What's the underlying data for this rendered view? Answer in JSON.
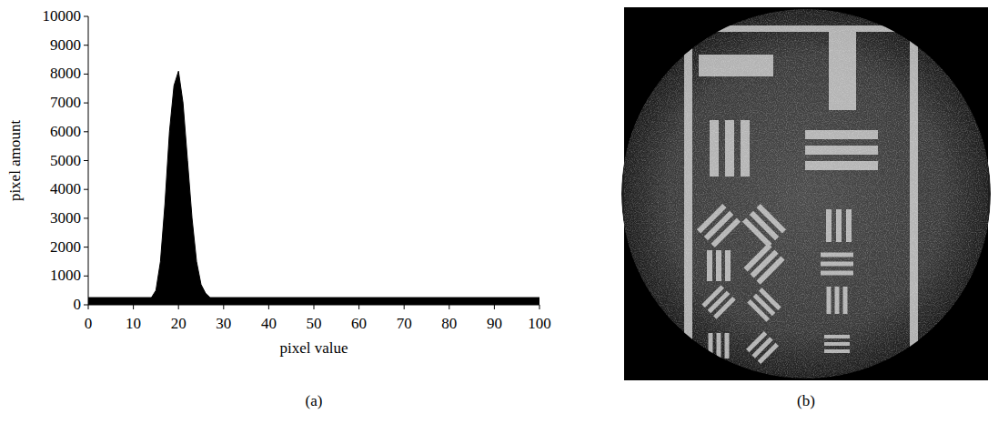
{
  "chart_data": {
    "type": "area",
    "panel_label": "(a)",
    "x_label": "pixel value",
    "y_label": "pixel amount",
    "x": [
      0,
      14,
      15,
      16,
      17,
      18,
      19,
      20,
      21,
      22,
      23,
      24,
      25,
      26,
      27,
      100
    ],
    "values": [
      250,
      250,
      500,
      1500,
      3500,
      6000,
      7600,
      8100,
      7000,
      5000,
      3000,
      1500,
      700,
      400,
      250,
      250
    ],
    "color": "#000000",
    "xlim": [
      0,
      100
    ],
    "xticks": [
      0,
      10,
      20,
      30,
      40,
      50,
      60,
      70,
      80,
      90,
      100
    ],
    "ylim": [
      0,
      10000
    ],
    "yticks": [
      0,
      1000,
      2000,
      3000,
      4000,
      5000,
      6000,
      7000,
      8000,
      9000,
      10000
    ],
    "grid": false
  },
  "image_panel": {
    "panel_label": "(b)"
  }
}
